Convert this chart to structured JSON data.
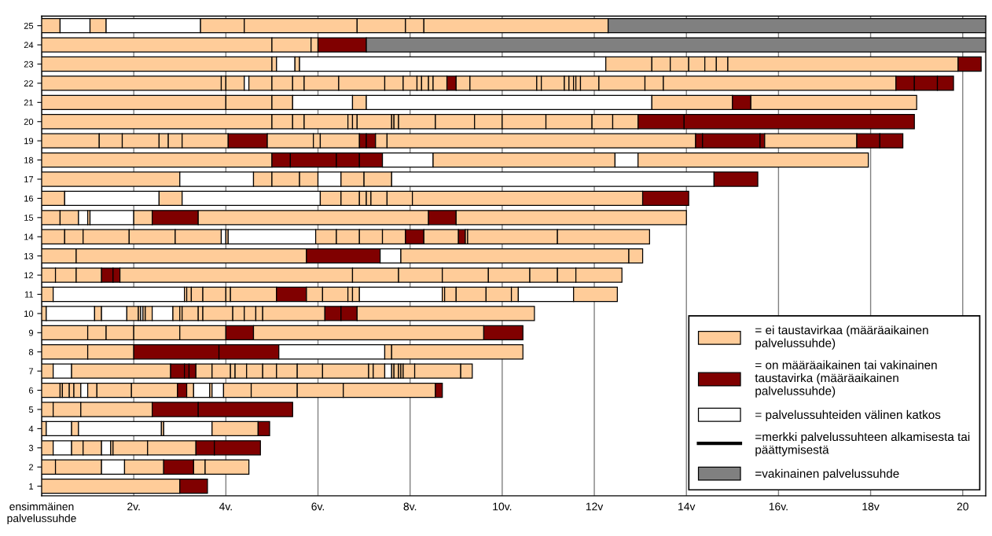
{
  "chart_data": {
    "type": "bar",
    "orientation": "horizontal",
    "stacked": true,
    "categories": [
      "25",
      "24",
      "23",
      "22",
      "21",
      "20",
      "19",
      "18",
      "17",
      "16",
      "15",
      "14",
      "13",
      "12",
      "11",
      "10",
      "9",
      "8",
      "7",
      "6",
      "5",
      "4",
      "3",
      "2",
      "1"
    ],
    "xlim": [
      0,
      20.5
    ],
    "xticks": [
      {
        "value": 0,
        "label": "ensimmäinen\npalvelussuhde"
      },
      {
        "value": 2,
        "label": "2v."
      },
      {
        "value": 4,
        "label": "4v."
      },
      {
        "value": 6,
        "label": "6v."
      },
      {
        "value": 8,
        "label": "8v."
      },
      {
        "value": 10,
        "label": "10v."
      },
      {
        "value": 12,
        "label": "12v"
      },
      {
        "value": 14,
        "label": "14v"
      },
      {
        "value": 16,
        "label": "16v."
      },
      {
        "value": 18,
        "label": "18v"
      },
      20
    ],
    "grid": "x",
    "legend": "bottom right",
    "series": [
      {
        "values": [
          0.4,
          5.0,
          5.0,
          3.9,
          4.0,
          5.0,
          1.25,
          5.0,
          3.0,
          0.5,
          0.4,
          0.5,
          0.75,
          0.3,
          0.25,
          0.1,
          1.0,
          1.0,
          0.25,
          0.4,
          0.25,
          0.1,
          0.25,
          0.3,
          3.0
        ],
        "colors": [
          "#ffcc99",
          "#ffcc99",
          "#ffcc99",
          "#ffcc99",
          "#ffcc99",
          "#ffcc99",
          "#ffcc99",
          "#ffcc99",
          "#ffcc99",
          "#ffcc99",
          "#ffcc99",
          "#ffcc99",
          "#ffcc99",
          "#ffcc99",
          "#ffcc99",
          "#ffcc99",
          "#ffcc99",
          "#ffcc99",
          "#ffcc99",
          "#ffcc99",
          "#ffcc99",
          "#ffcc99",
          "#ffcc99",
          "#ffcc99",
          "#ffcc99"
        ]
      },
      {
        "values": [
          0.65,
          0.85,
          0.1,
          0.1,
          1.0,
          0.45,
          0.5,
          0.4,
          1.6,
          2.05,
          0.4,
          0.4,
          5.0,
          0.45,
          2.85,
          1.05,
          0.4,
          1.0,
          0.4,
          0.05,
          0.6,
          0.55,
          0.4,
          1.0,
          0.6
        ],
        "colors": [
          "#ffffff",
          "#ffcc99",
          "#ffcc99",
          "#ffcc99",
          "#ffcc99",
          "#ffcc99",
          "#ffcc99",
          "#800000",
          "#ffffff",
          "#ffffff",
          "#ffcc99",
          "#ffcc99",
          "#ffcc99",
          "#ffcc99",
          "#ffffff",
          "#ffffff",
          "#ffcc99",
          "#ffcc99",
          "#ffffff",
          "#ffcc99",
          "#ffcc99",
          "#ffffff",
          "#ffffff",
          "#ffcc99",
          "#800000"
        ]
      },
      {
        "values": [
          0.35,
          0.15,
          0.4,
          0.4,
          0.45,
          0.25,
          0.8,
          1.0,
          0.4,
          0.5,
          0.2,
          1.0,
          1.6,
          0.55,
          0.05,
          0.15,
          0.6,
          1.85,
          2.15,
          0.15,
          1.55,
          0.15,
          0.25,
          0.5,
          null
        ],
        "colors": [
          "#ffcc99",
          "#ffcc99",
          "#ffffff",
          "#ffcc99",
          "#ffcc99",
          "#ffcc99",
          "#ffcc99",
          "#800000",
          "#ffcc99",
          "#ffcc99",
          "#ffffff",
          "#ffcc99",
          "#800000",
          "#ffcc99",
          "#ffcc99",
          "#ffcc99",
          "#ffcc99",
          "#800000",
          "#ffcc99",
          "#ffcc99",
          "#ffcc99",
          "#ffcc99",
          "#ffcc99",
          "#ffffff",
          null
        ]
      },
      {
        "values": [
          2.05,
          1.05,
          0.1,
          0.1,
          1.3,
          0.95,
          0.2,
          0.5,
          0.6,
          3.0,
          0.05,
          1.0,
          0.45,
          0.25,
          0.1,
          0.55,
          1.0,
          1.3,
          0.3,
          0.1,
          1.0,
          1.8,
          0.4,
          0.85,
          null
        ],
        "colors": [
          "#ffffff",
          "#800000",
          "#ffcc99",
          "#ffffff",
          "#ffffff",
          "#ffcc99",
          "#ffcc99",
          "#800000",
          "#ffcc99",
          "#ffffff",
          "#ffcc99",
          "#ffcc99",
          "#ffffff",
          "#800000",
          "#ffcc99",
          "#ffffff",
          "#ffcc99",
          "#800000",
          "#800000",
          "#ffcc99",
          "#800000",
          "#ffffff",
          "#ffcc99",
          "#ffcc99",
          null
        ]
      },
      {
        "values": [
          0.95,
          13.45,
          6.65,
          0.5,
          0.3,
          0.1,
          0.3,
          0.5,
          0.4,
          0.45,
          0.95,
          1.0,
          4.95,
          0.15,
          0.25,
          0.25,
          1.0,
          2.3,
          0.1,
          0.15,
          2.05,
          0.05,
          0.2,
          0.65,
          null
        ],
        "colors": [
          "#ffcc99",
          "#808080",
          "#ffffff",
          "#ffcc99",
          "#ffcc99",
          "#ffcc99",
          "#ffcc99",
          "#800000",
          "#ffcc99",
          "#ffcc99",
          "#ffffff",
          "#ffcc99",
          "#ffcc99",
          "#800000",
          "#ffcc99",
          "#ffcc99",
          "#ffcc99",
          "#ffffff",
          "#800000",
          "#ffcc99",
          "#800000",
          "#ffcc99",
          "#ffffff",
          "#800000",
          null
        ]
      },
      {
        "values": [
          2.45,
          null,
          1.0,
          0.45,
          6.2,
          0.1,
          1.0,
          1.1,
          0.5,
          0.4,
          0.4,
          0.1,
          0.3,
          5.05,
          0.5,
          0.05,
          0.6,
          0.15,
          0.15,
          0.15,
          null,
          1.05,
          0.05,
          0.25,
          null
        ],
        "colors": [
          "#ffcc99",
          null,
          "#ffcc99",
          "#ffcc99",
          "#ffffff",
          "#ffcc99",
          "#ffcc99",
          "#ffffff",
          "#ffffff",
          "#ffcc99",
          "#ffcc99",
          "#ffffff",
          "#ffcc99",
          "#ffcc99",
          "#ffcc99",
          "#ffcc99",
          "#800000",
          "#ffcc99",
          "#800000",
          "#ffffff",
          null,
          "#ffffff",
          "#ffcc99",
          "#ffcc99",
          null
        ]
      },
      {
        "values": [
          1.05,
          null,
          0.4,
          0.25,
          1.75,
          0.75,
          0.85,
          3.95,
          0.5,
          0.15,
          1.0,
          0.05,
          null,
          1.0,
          0.1,
          0.05,
          5.0,
          2.85,
          0.35,
          0.2,
          null,
          1.0,
          0.75,
          0.95,
          null
        ],
        "colors": [
          "#ffcc99",
          null,
          "#ffcc99",
          "#ffcc99",
          "#ffcc99",
          "#ffcc99",
          "#800000",
          "#ffcc99",
          "#ffcc99",
          "#ffcc99",
          "#800000",
          "#ffcc99",
          null,
          "#ffcc99",
          "#ffcc99",
          "#ffffff",
          "#ffcc99",
          "#ffcc99",
          "#ffcc99",
          "#ffcc99",
          null,
          "#ffcc99",
          "#ffcc99",
          "#ffcc99",
          null
        ]
      },
      {
        "values": [
          0.4,
          null,
          0.4,
          0.75,
          0.4,
          0.05,
          1.0,
          0.5,
          0.6,
          0.1,
          5.0,
          1.9,
          null,
          0.95,
          1.0,
          0.05,
          0.85,
          null,
          0.4,
          0.75,
          null,
          0.25,
          1.05,
          null,
          null
        ],
        "colors": [
          "#ffcc99",
          null,
          "#ffcc99",
          "#ffcc99",
          "#800000",
          "#ffcc99",
          "#ffcc99",
          "#ffffff",
          "#ffcc99",
          "#ffcc99",
          "#ffcc99",
          "#ffffff",
          null,
          "#ffcc99",
          "#ffcc99",
          "#ffcc99",
          "#800000",
          null,
          "#ffcc99",
          "#ffcc99",
          null,
          "#800000",
          "#ffcc99",
          null,
          null
        ]
      },
      {
        "values": [
          4.0,
          null,
          0.35,
          1.0,
          3.6,
          0.1,
          0.15,
          5.0,
          7.0,
          0.35,
          0.6,
          0.45,
          null,
          1.0,
          0.65,
          0.15,
          null,
          null,
          0.1,
          1.0,
          null,
          null,
          0.4,
          null,
          null
        ],
        "colors": [
          "#ffcc99",
          null,
          "#ffcc99",
          "#ffcc99",
          "#ffcc99",
          "#ffcc99",
          "#ffcc99",
          "#ffcc99",
          "#ffffff",
          "#ffcc99",
          "#800000",
          "#ffcc99",
          null,
          "#ffcc99",
          "#800000",
          "#ffcc99",
          null,
          null,
          "#ffcc99",
          "#ffcc99",
          null,
          null,
          "#800000",
          null,
          null
        ]
      },
      {
        "values": [
          8.2,
          null,
          0.25,
          0.4,
          null,
          0.8,
          0.85,
          null,
          0.95,
          0.55,
          5.0,
          0.5,
          null,
          0.9,
          0.35,
          0.45,
          null,
          null,
          0.25,
          0.2,
          null,
          null,
          1.0,
          null,
          null
        ],
        "colors": [
          "#808080",
          null,
          "#ffcc99",
          "#ffcc99",
          null,
          "#ffcc99",
          "#ffcc99",
          null,
          "#800000",
          "#ffcc99",
          "#ffcc99",
          "#ffcc99",
          null,
          "#ffcc99",
          "#ffcc99",
          "#ffffff",
          null,
          null,
          "#ffcc99",
          "#800000",
          null,
          null,
          "#800000",
          null,
          null
        ]
      },
      {
        "values": [
          null,
          null,
          0.25,
          0.3,
          null,
          0.85,
          0.15,
          null,
          null,
          5.0,
          null,
          0.5,
          null,
          0.6,
          0.55,
          0.15,
          null,
          null,
          0.35,
          0.15,
          null,
          null,
          null,
          null,
          null
        ],
        "colors": [
          null,
          null,
          "#ffcc99",
          "#ffcc99",
          null,
          "#ffcc99",
          "#800000",
          null,
          null,
          "#ffcc99",
          null,
          "#ffcc99",
          null,
          "#ffcc99",
          "#ffcc99",
          "#ffcc99",
          null,
          null,
          "#ffcc99",
          "#ffcc99",
          null,
          null,
          null,
          null,
          null
        ]
      },
      {
        "values": [
          null,
          null,
          5.0,
          0.1,
          null,
          0.6,
          0.2,
          null,
          null,
          1.0,
          null,
          0.5,
          null,
          0.4,
          0.1,
          0.05,
          null,
          null,
          0.3,
          0.35,
          null,
          null,
          null,
          null,
          null
        ],
        "colors": [
          null,
          null,
          "#ffcc99",
          "#ffcc99",
          null,
          "#ffcc99",
          "#800000",
          null,
          null,
          "#800000",
          null,
          "#ffcc99",
          null,
          "#ffcc99",
          "#ffcc99",
          "#ffcc99",
          null,
          null,
          "#ffcc99",
          "#ffffff",
          null,
          null,
          null,
          null,
          null
        ]
      },
      {
        "values": [
          null,
          null,
          0.5,
          0.15,
          null,
          0.95,
          0.25,
          null,
          null,
          null,
          null,
          0.4,
          null,
          1.0,
          0.15,
          0.35,
          null,
          null,
          0.45,
          0.05,
          null,
          null,
          null,
          null,
          null
        ],
        "colors": [
          null,
          null,
          "#800000",
          "#ffcc99",
          null,
          "#ffcc99",
          "#ffcc99",
          null,
          null,
          null,
          null,
          "#800000",
          null,
          "#ffcc99",
          "#ffcc99",
          "#ffcc99",
          null,
          null,
          "#ffcc99",
          "#ffcc99",
          null,
          null,
          null,
          null,
          null
        ]
      },
      {
        "values": [
          null,
          null,
          null,
          0.1,
          null,
          1.0,
          6.7,
          null,
          null,
          null,
          null,
          0.75,
          null,
          null,
          1.8,
          0.1,
          null,
          null,
          0.55,
          0.25,
          null,
          null,
          null,
          null,
          null
        ],
        "colors": [
          null,
          null,
          null,
          "#ffcc99",
          null,
          "#ffcc99",
          "#ffcc99",
          null,
          null,
          null,
          null,
          "#ffcc99",
          null,
          null,
          "#ffffff",
          "#ffcc99",
          null,
          null,
          "#ffcc99",
          "#ffffff",
          null,
          null,
          null,
          null,
          null
        ]
      },
      {
        "values": [
          null,
          null,
          null,
          0.3,
          null,
          0.45,
          0.15,
          null,
          null,
          null,
          null,
          0.15,
          null,
          null,
          0.05,
          0.65,
          null,
          null,
          1.0,
          0.6,
          null,
          null,
          null,
          null,
          null
        ],
        "colors": [
          null,
          null,
          null,
          "#ffcc99",
          null,
          "#ffcc99",
          "#800000",
          null,
          null,
          null,
          null,
          "#800000",
          null,
          null,
          "#ffcc99",
          "#ffcc99",
          null,
          null,
          "#ffcc99",
          "#ffcc99",
          null,
          null,
          null,
          null,
          null
        ]
      },
      {
        "values": [
          null,
          null,
          null,
          0.2,
          null,
          0.55,
          1.25,
          null,
          null,
          null,
          null,
          0.05,
          null,
          null,
          0.25,
          0.25,
          null,
          null,
          0.1,
          1.0,
          null,
          null,
          null,
          null,
          null
        ],
        "colors": [
          null,
          null,
          null,
          "#800000",
          null,
          "#ffcc99",
          "#800000",
          null,
          null,
          null,
          null,
          "#ffcc99",
          null,
          null,
          "#ffcc99",
          "#ffcc99",
          null,
          null,
          "#ffcc99",
          "#ffcc99",
          null,
          null,
          null,
          null,
          null
        ]
      },
      {
        "values": [
          null,
          null,
          null,
          0.3,
          null,
          1.0,
          0.1,
          null,
          null,
          null,
          null,
          1.95,
          null,
          null,
          0.65,
          0.25,
          null,
          null,
          0.25,
          1.0,
          null,
          null,
          null,
          null,
          null
        ],
        "colors": [
          null,
          null,
          null,
          "#ffcc99",
          null,
          "#800000",
          "#800000",
          null,
          null,
          null,
          null,
          "#ffcc99",
          null,
          null,
          "#ffcc99",
          "#ffcc99",
          null,
          null,
          "#ffcc99",
          "#ffcc99",
          null,
          null,
          null,
          null,
          null
        ]
      },
      {
        "values": [
          null,
          null,
          null,
          1.45,
          null,
          5.0,
          2.0,
          null,
          null,
          null,
          null,
          2.0,
          null,
          null,
          0.55,
          0.15,
          null,
          null,
          0.15,
          2.0,
          null,
          null,
          null,
          null,
          null
        ],
        "colors": [
          null,
          null,
          null,
          "#ffcc99",
          null,
          "#800000",
          "#ffcc99",
          null,
          null,
          null,
          null,
          "#ffcc99",
          null,
          null,
          "#ffcc99",
          "#ffcc99",
          null,
          null,
          "#ffffff",
          "#ffcc99",
          null,
          null,
          null,
          null,
          null
        ]
      },
      {
        "values": [
          null,
          null,
          null,
          0.1,
          null,
          null,
          0.5,
          null,
          null,
          null,
          null,
          null,
          null,
          null,
          0.15,
          1.35,
          null,
          null,
          0.05,
          0.15,
          null,
          null,
          null,
          null,
          null
        ],
        "colors": [
          null,
          null,
          null,
          "#ffcc99",
          null,
          null,
          "#800000",
          null,
          null,
          null,
          null,
          null,
          null,
          null,
          "#ffcc99",
          "#ffcc99",
          null,
          null,
          "#ffcc99",
          "#800000",
          null,
          null,
          null,
          null,
          null
        ]
      },
      {
        "values": [
          null,
          null,
          null,
          0.5,
          null,
          null,
          0.5,
          null,
          null,
          null,
          null,
          null,
          null,
          null,
          1.2,
          0.35,
          null,
          null,
          0.1,
          null,
          null,
          null,
          null,
          null,
          null
        ],
        "colors": [
          null,
          null,
          null,
          "#ffcc99",
          null,
          null,
          "#800000",
          null,
          null,
          null,
          null,
          null,
          null,
          null,
          "#ffffff",
          "#800000",
          null,
          null,
          "#ffcc99",
          null,
          null,
          null,
          null,
          null,
          null
        ]
      },
      {
        "values": [
          null,
          null,
          null,
          0.1,
          null,
          null,
          null,
          null,
          null,
          null,
          null,
          null,
          null,
          null,
          0.95,
          0.35,
          null,
          null,
          0.05,
          null,
          null,
          null,
          null,
          null,
          null
        ],
        "colors": [
          null,
          null,
          null,
          "#ffcc99",
          null,
          null,
          null,
          null,
          null,
          null,
          null,
          null,
          null,
          null,
          "#ffcc99",
          "#800000",
          null,
          null,
          "#ffcc99",
          null,
          null,
          null,
          null,
          null,
          null
        ]
      },
      {
        "values": [
          null,
          null,
          null,
          0.1,
          null,
          null,
          null,
          null,
          null,
          null,
          null,
          null,
          null,
          null,
          null,
          3.85,
          null,
          null,
          0.05,
          null,
          null,
          null,
          null,
          null,
          null
        ],
        "colors": [
          null,
          null,
          null,
          "#ffcc99",
          null,
          null,
          null,
          null,
          null,
          null,
          null,
          null,
          null,
          null,
          null,
          "#ffcc99",
          null,
          null,
          "#ffcc99",
          null,
          null,
          null,
          null,
          null,
          null
        ]
      },
      {
        "values": [
          null,
          null,
          null,
          0.05,
          null,
          null,
          null,
          null,
          null,
          null,
          null,
          null,
          null,
          null,
          null,
          null,
          null,
          null,
          0.25,
          null,
          null,
          null,
          null,
          null,
          null
        ],
        "colors": [
          null,
          null,
          null,
          "#ffcc99",
          null,
          null,
          null,
          null,
          null,
          null,
          null,
          null,
          null,
          null,
          null,
          null,
          null,
          null,
          "#ffcc99",
          null,
          null,
          null,
          null,
          null,
          null
        ]
      },
      {
        "values": [
          null,
          null,
          null,
          0.1,
          null,
          null,
          null,
          null,
          null,
          null,
          null,
          null,
          null,
          null,
          null,
          null,
          null,
          null,
          1.0,
          null,
          null,
          null,
          null,
          null,
          null
        ],
        "colors": [
          null,
          null,
          null,
          "#ffcc99",
          null,
          null,
          null,
          null,
          null,
          null,
          null,
          null,
          null,
          null,
          null,
          null,
          null,
          null,
          "#ffcc99",
          null,
          null,
          null,
          null,
          null,
          null
        ]
      },
      {
        "values": [
          null,
          null,
          null,
          0.4,
          null,
          null,
          null,
          null,
          null,
          null,
          null,
          null,
          null,
          null,
          null,
          null,
          null,
          null,
          0.25,
          null,
          null,
          null,
          null,
          null,
          null
        ],
        "colors": [
          null,
          null,
          null,
          "#ffcc99",
          null,
          null,
          null,
          null,
          null,
          null,
          null,
          null,
          null,
          null,
          null,
          null,
          null,
          null,
          "#ffcc99",
          null,
          null,
          null,
          null,
          null,
          null
        ]
      },
      {
        "values": [
          null,
          null,
          null,
          1.0,
          null,
          null,
          null,
          null,
          null,
          null,
          null,
          null,
          null,
          null,
          null,
          null,
          null,
          null,
          null,
          null,
          null,
          null,
          null,
          null,
          null
        ],
        "colors": [
          null,
          null,
          null,
          "#ffcc99",
          null,
          null,
          null,
          null,
          null,
          null,
          null,
          null,
          null,
          null,
          null,
          null,
          null,
          null,
          null,
          null,
          null,
          null,
          null,
          null,
          null
        ]
      },
      {
        "values": [
          null,
          null,
          null,
          0.4,
          null,
          null,
          null,
          null,
          null,
          null,
          null,
          null,
          null,
          null,
          null,
          null,
          null,
          null,
          null,
          null,
          null,
          null,
          null,
          null,
          null
        ],
        "colors": [
          null,
          null,
          null,
          "#ffcc99",
          null,
          null,
          null,
          null,
          null,
          null,
          null,
          null,
          null,
          null,
          null,
          null,
          null,
          null,
          null,
          null,
          null,
          null,
          null,
          null,
          null
        ]
      },
      {
        "values": [
          null,
          null,
          null,
          5.05,
          null,
          null,
          null,
          null,
          null,
          null,
          null,
          null,
          null,
          null,
          null,
          null,
          null,
          null,
          null,
          null,
          null,
          null,
          null,
          null,
          null
        ],
        "colors": [
          null,
          null,
          null,
          "#ffcc99",
          null,
          null,
          null,
          null,
          null,
          null,
          null,
          null,
          null,
          null,
          null,
          null,
          null,
          null,
          null,
          null,
          null,
          null,
          null,
          null,
          null
        ]
      },
      {
        "values": [
          null,
          null,
          null,
          0.4,
          null,
          null,
          null,
          null,
          null,
          null,
          null,
          null,
          null,
          null,
          null,
          null,
          null,
          null,
          null,
          null,
          null,
          null,
          null,
          null,
          null
        ],
        "colors": [
          null,
          null,
          null,
          "#800000",
          null,
          null,
          null,
          null,
          null,
          null,
          null,
          null,
          null,
          null,
          null,
          null,
          null,
          null,
          null,
          null,
          null,
          null,
          null,
          null,
          null
        ]
      },
      {
        "values": [
          null,
          null,
          null,
          0.5,
          null,
          null,
          null,
          null,
          null,
          null,
          null,
          null,
          null,
          null,
          null,
          null,
          null,
          null,
          null,
          null,
          null,
          null,
          null,
          null,
          null
        ],
        "colors": [
          null,
          null,
          null,
          "#800000",
          null,
          null,
          null,
          null,
          null,
          null,
          null,
          null,
          null,
          null,
          null,
          null,
          null,
          null,
          null,
          null,
          null,
          null,
          null,
          null,
          null
        ]
      },
      {
        "values": [
          null,
          null,
          null,
          0.35,
          null,
          null,
          null,
          null,
          null,
          null,
          null,
          null,
          null,
          null,
          null,
          null,
          null,
          null,
          null,
          null,
          null,
          null,
          null,
          null,
          null
        ],
        "colors": [
          null,
          null,
          null,
          "#800000",
          null,
          null,
          null,
          null,
          null,
          null,
          null,
          null,
          null,
          null,
          null,
          null,
          null,
          null,
          null,
          null,
          null,
          null,
          null,
          null,
          null
        ]
      },
      {
        "name": "= ei taustavirkaa (määräaikainen\npalvelussuhde)",
        "color": "#ffcc99",
        "values": [
          null,
          null,
          null,
          null,
          null,
          null,
          null,
          null,
          null,
          null,
          null,
          null,
          null,
          null,
          null,
          null,
          null,
          null,
          null,
          null,
          null,
          null,
          null,
          null,
          null
        ]
      },
      {
        "name": "= on määräaikainen tai vakinainen\ntaustavirka (määräaikainen\npalvelussuhde)",
        "color": "#800000",
        "values": [
          null,
          null,
          null,
          null,
          null,
          null,
          null,
          null,
          null,
          null,
          null,
          null,
          null,
          null,
          null,
          null,
          null,
          null,
          null,
          null,
          null,
          null,
          null,
          null,
          null
        ]
      },
      {
        "name": "= palvelussuhteiden välinen katkos",
        "color": "#ffffff",
        "values": [
          null,
          null,
          null,
          null,
          null,
          null,
          null,
          null,
          null,
          null,
          null,
          null,
          null,
          null,
          null,
          null,
          null,
          null,
          null,
          null,
          null,
          null,
          null,
          null,
          null
        ]
      },
      {
        "name": "=merkki palvelussuhteen alkamisesta tai\npäättymisestä",
        "type": "line",
        "color": "#000000",
        "values": [
          null,
          null,
          null,
          null,
          null,
          null,
          null,
          null,
          null,
          null,
          null,
          null,
          null,
          null,
          null,
          null,
          null,
          null,
          null,
          null,
          null,
          null,
          null,
          null,
          null
        ]
      },
      {
        "name": "=vakinainen palvelussuhde",
        "color": "#808080",
        "values": [
          null,
          null,
          null,
          null,
          null,
          null,
          null,
          null,
          null,
          null,
          null,
          null,
          null,
          null,
          null,
          null,
          null,
          null,
          null,
          null,
          null,
          null,
          null,
          null,
          null
        ]
      }
    ]
  }
}
